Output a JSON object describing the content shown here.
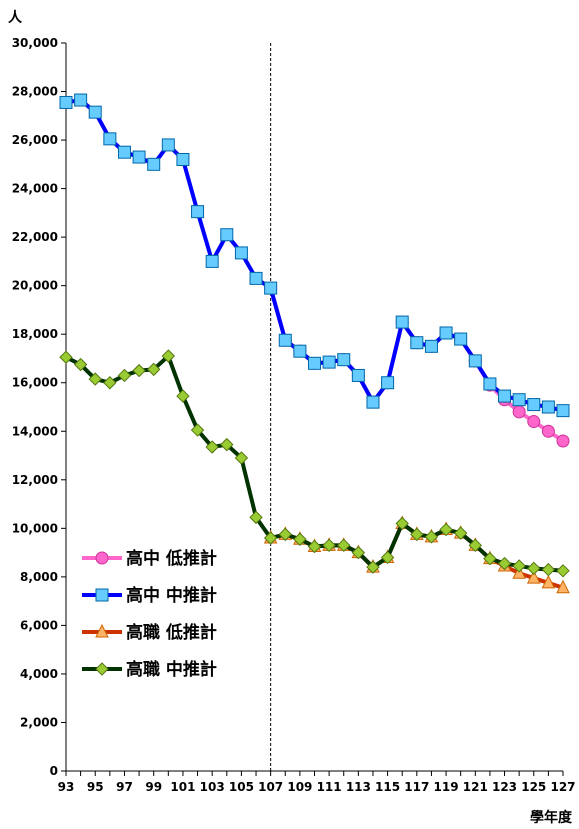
{
  "chart_data": {
    "type": "line",
    "ylabel": "人",
    "xlabel": "學年度",
    "ylim": [
      0,
      30000
    ],
    "y_ticks": [
      "0",
      "2,000",
      "4,000",
      "6,000",
      "8,000",
      "10,000",
      "12,000",
      "14,000",
      "16,000",
      "18,000",
      "20,000",
      "22,000",
      "24,000",
      "26,000",
      "28,000",
      "30,000"
    ],
    "x_tick_labels": [
      "93",
      "95",
      "97",
      "99",
      "101",
      "103",
      "105",
      "107",
      "109",
      "111",
      "113",
      "115",
      "117",
      "119",
      "121",
      "123",
      "125",
      "127"
    ],
    "x": [
      93,
      94,
      95,
      96,
      97,
      98,
      99,
      100,
      101,
      102,
      103,
      104,
      105,
      106,
      107,
      108,
      109,
      110,
      111,
      112,
      113,
      114,
      115,
      116,
      117,
      118,
      119,
      120,
      121,
      122,
      123,
      124,
      125,
      126,
      127
    ],
    "divider_x": 107,
    "grid": false,
    "legend_position": "lower-left",
    "series": [
      {
        "name": "高中 低推計",
        "color": "#ff66cc",
        "marker": "circle",
        "x": [
          107,
          108,
          109,
          110,
          111,
          112,
          113,
          114,
          115,
          116,
          117,
          118,
          119,
          120,
          121,
          122,
          123,
          124,
          125,
          126,
          127
        ],
        "values": [
          19900,
          17750,
          17300,
          16800,
          16850,
          16950,
          16300,
          15200,
          16000,
          18500,
          17650,
          17500,
          18050,
          17800,
          16900,
          15900,
          15300,
          14800,
          14400,
          14000,
          13600
        ]
      },
      {
        "name": "高中 中推計",
        "color": "#0000ff",
        "marker": "square",
        "x": [
          93,
          94,
          95,
          96,
          97,
          98,
          99,
          100,
          101,
          102,
          103,
          104,
          105,
          106,
          107,
          108,
          109,
          110,
          111,
          112,
          113,
          114,
          115,
          116,
          117,
          118,
          119,
          120,
          121,
          122,
          123,
          124,
          125,
          126,
          127
        ],
        "values": [
          27550,
          27650,
          27150,
          26050,
          25500,
          25300,
          25000,
          25800,
          25200,
          23050,
          21000,
          22100,
          21350,
          20300,
          19900,
          17750,
          17300,
          16800,
          16850,
          16950,
          16300,
          15200,
          16000,
          18500,
          17650,
          17500,
          18050,
          17800,
          16900,
          15950,
          15450,
          15300,
          15100,
          15000,
          14850
        ]
      },
      {
        "name": "高職 低推計",
        "color": "#cc3300",
        "marker": "triangle",
        "x": [
          107,
          108,
          109,
          110,
          111,
          112,
          113,
          114,
          115,
          116,
          117,
          118,
          119,
          120,
          121,
          122,
          123,
          124,
          125,
          126,
          127
        ],
        "values": [
          9600,
          9750,
          9550,
          9250,
          9300,
          9300,
          9000,
          8400,
          8800,
          10200,
          9750,
          9650,
          9950,
          9800,
          9300,
          8750,
          8450,
          8150,
          7950,
          7750,
          7550
        ]
      },
      {
        "name": "高職 中推計",
        "color": "#003300",
        "marker": "diamond",
        "x": [
          93,
          94,
          95,
          96,
          97,
          98,
          99,
          100,
          101,
          102,
          103,
          104,
          105,
          106,
          107,
          108,
          109,
          110,
          111,
          112,
          113,
          114,
          115,
          116,
          117,
          118,
          119,
          120,
          121,
          122,
          123,
          124,
          125,
          126,
          127
        ],
        "values": [
          17050,
          16750,
          16150,
          16000,
          16300,
          16500,
          16550,
          17100,
          15450,
          14050,
          13350,
          13450,
          12900,
          10450,
          9600,
          9750,
          9550,
          9250,
          9300,
          9300,
          9000,
          8400,
          8800,
          10200,
          9750,
          9650,
          9950,
          9800,
          9300,
          8750,
          8550,
          8450,
          8350,
          8300,
          8250
        ]
      }
    ]
  }
}
